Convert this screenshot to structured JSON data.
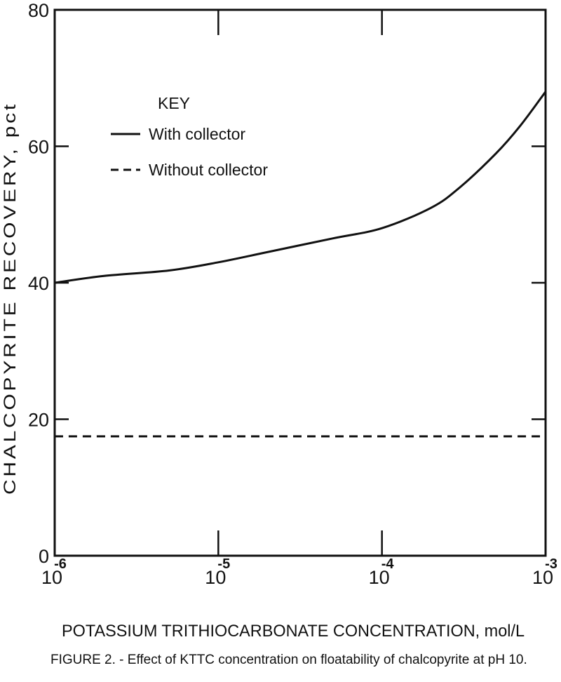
{
  "chart_data": {
    "type": "line",
    "xscale": "log",
    "x_ticks": [
      {
        "value": 1e-06,
        "base": "10",
        "exponent": "-6"
      },
      {
        "value": 1e-05,
        "base": "10",
        "exponent": "-5"
      },
      {
        "value": 0.0001,
        "base": "10",
        "exponent": "-4"
      },
      {
        "value": 0.001,
        "base": "10",
        "exponent": "-3"
      }
    ],
    "xlim": [
      1e-06,
      0.001
    ],
    "ylim": [
      0,
      80
    ],
    "y_ticks": [
      "0",
      "20",
      "40",
      "60",
      "80"
    ],
    "xlabel": "POTASSIUM TRITHIOCARBONATE CONCENTRATION, mol/L",
    "ylabel": "CHALCOPYRITE RECOVERY, pct",
    "grid": false,
    "legend": {
      "title": "KEY",
      "placement": "upper-left",
      "entries": [
        "With collector",
        "Without collector"
      ]
    },
    "series": [
      {
        "name": "With collector",
        "style": "solid",
        "x": [
          1e-06,
          2e-06,
          5e-06,
          1e-05,
          2e-05,
          5e-05,
          0.0001,
          0.0002,
          0.0003,
          0.0005,
          0.0007,
          0.001
        ],
        "y": [
          40,
          41,
          41.8,
          43,
          44.5,
          46.5,
          48,
          51,
          54,
          59,
          63,
          68
        ]
      },
      {
        "name": "Without collector",
        "style": "dashed",
        "x": [
          1e-06,
          1e-05,
          0.0001,
          0.001
        ],
        "y": [
          17.5,
          17.5,
          17.5,
          17.5
        ]
      }
    ],
    "caption": "FIGURE 2. - Effect of KTTC concentration on floatability of chalcopyrite at pH 10."
  }
}
